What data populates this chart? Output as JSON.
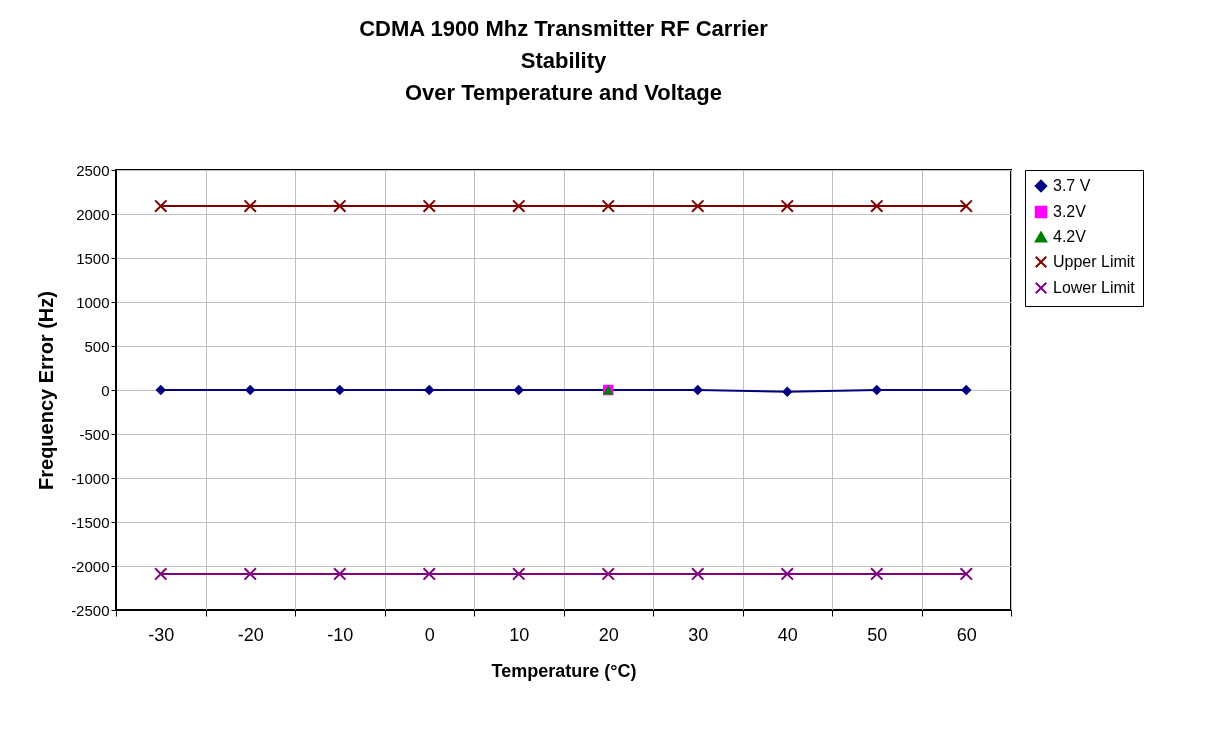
{
  "chart_data": {
    "type": "line",
    "title": "CDMA 1900 Mhz Transmitter RF Carrier\nStability\nOver Temperature and Voltage",
    "xlabel": "Temperature (°C)",
    "ylabel": "Frequency Error (Hz)",
    "categories": [
      "-30",
      "-20",
      "-10",
      "0",
      "10",
      "20",
      "30",
      "40",
      "50",
      "60"
    ],
    "ylim": [
      -2500,
      2500
    ],
    "yticks": [
      -2500,
      -2000,
      -1500,
      -1000,
      -500,
      0,
      500,
      1000,
      1500,
      2000,
      2500
    ],
    "grid": true,
    "legend": "right",
    "series": [
      {
        "name": "3.7 V",
        "color": "#000080",
        "marker": "diamond",
        "values": [
          0,
          0,
          0,
          0,
          0,
          0,
          0,
          -20,
          0,
          0
        ]
      },
      {
        "name": "3.2V",
        "color": "#ff00ff",
        "marker": "square",
        "values": [
          null,
          null,
          null,
          null,
          null,
          0,
          null,
          null,
          null,
          null
        ]
      },
      {
        "name": "4.2V",
        "color": "#008000",
        "marker": "triangle",
        "values": [
          null,
          null,
          null,
          null,
          null,
          0,
          null,
          null,
          null,
          null
        ]
      },
      {
        "name": "Upper Limit",
        "color": "#800000",
        "marker": "cross",
        "values": [
          2090,
          2090,
          2090,
          2090,
          2090,
          2090,
          2090,
          2090,
          2090,
          2090
        ]
      },
      {
        "name": "Lower Limit",
        "color": "#800080",
        "marker": "cross",
        "values": [
          -2090,
          -2090,
          -2090,
          -2090,
          -2090,
          -2090,
          -2090,
          -2090,
          -2090,
          -2090
        ]
      }
    ]
  }
}
